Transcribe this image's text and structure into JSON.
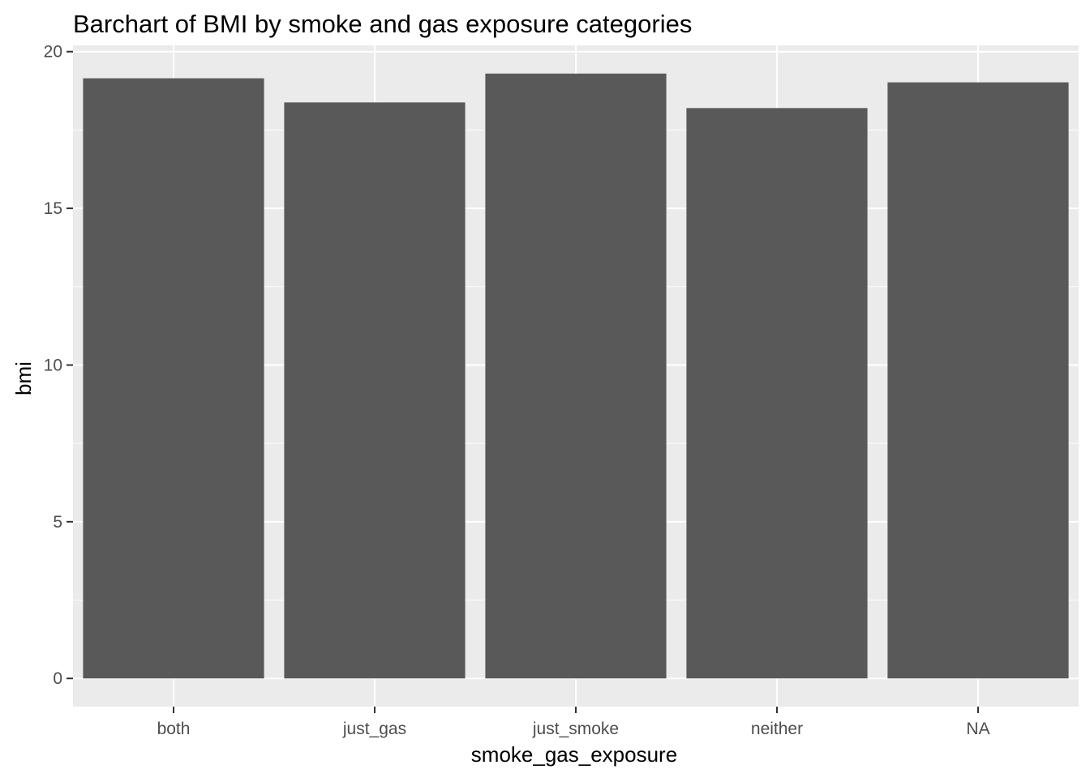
{
  "chart_data": {
    "type": "bar",
    "title": "Barchart of BMI by smoke and gas exposure categories",
    "xlabel": "smoke_gas_exposure",
    "ylabel": "bmi",
    "categories": [
      "both",
      "just_gas",
      "just_smoke",
      "neither",
      "NA"
    ],
    "values": [
      19.15,
      18.38,
      19.3,
      18.2,
      19.02
    ],
    "ylim": [
      -0.9,
      20.2
    ],
    "yticks": [
      0,
      5,
      10,
      15,
      20
    ],
    "ytick_labels": [
      "0",
      "5",
      "10",
      "15",
      "20"
    ],
    "grid": true,
    "legend": "none",
    "colors": {
      "bar": "#595959",
      "panel": "#ebebeb",
      "grid_major": "#ffffff",
      "tick": "#333333"
    }
  }
}
